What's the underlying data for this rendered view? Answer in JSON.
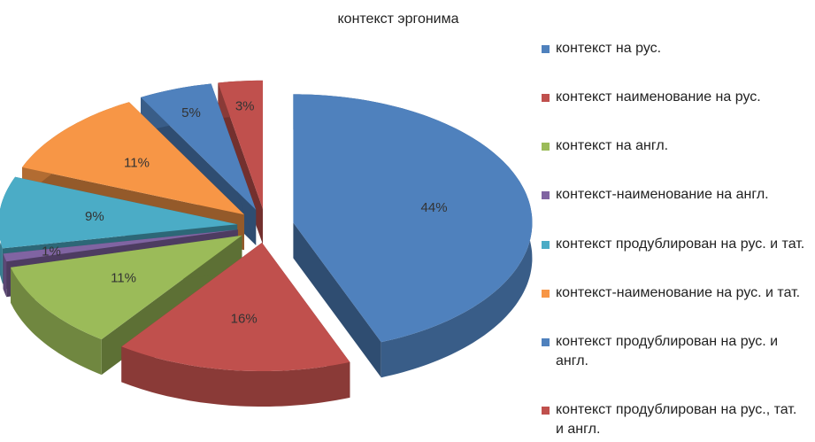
{
  "chart_data": {
    "type": "pie",
    "title": "контекст эргонима",
    "categories": [
      "контекст на рус.",
      "контекст наименование на рус.",
      "контекст на англ.",
      "контекст-наименование на англ.",
      "контекст продублирован на рус. и тат.",
      "контекст-наименование на рус. и тат.",
      "контекст продублирован на рус. и англ.",
      "контекст продублирован на рус., тат. и англ."
    ],
    "values": [
      44,
      16,
      11,
      1,
      9,
      11,
      5,
      3
    ],
    "value_labels": [
      "44%",
      "16%",
      "11%",
      "1%",
      "9%",
      "11%",
      "5%",
      "3%"
    ],
    "colors": [
      "#4f81bd",
      "#c0504d",
      "#9bbb59",
      "#8064a2",
      "#4bacc6",
      "#f79646",
      "#4f81bd",
      "#c0504d"
    ],
    "legend": "right"
  }
}
